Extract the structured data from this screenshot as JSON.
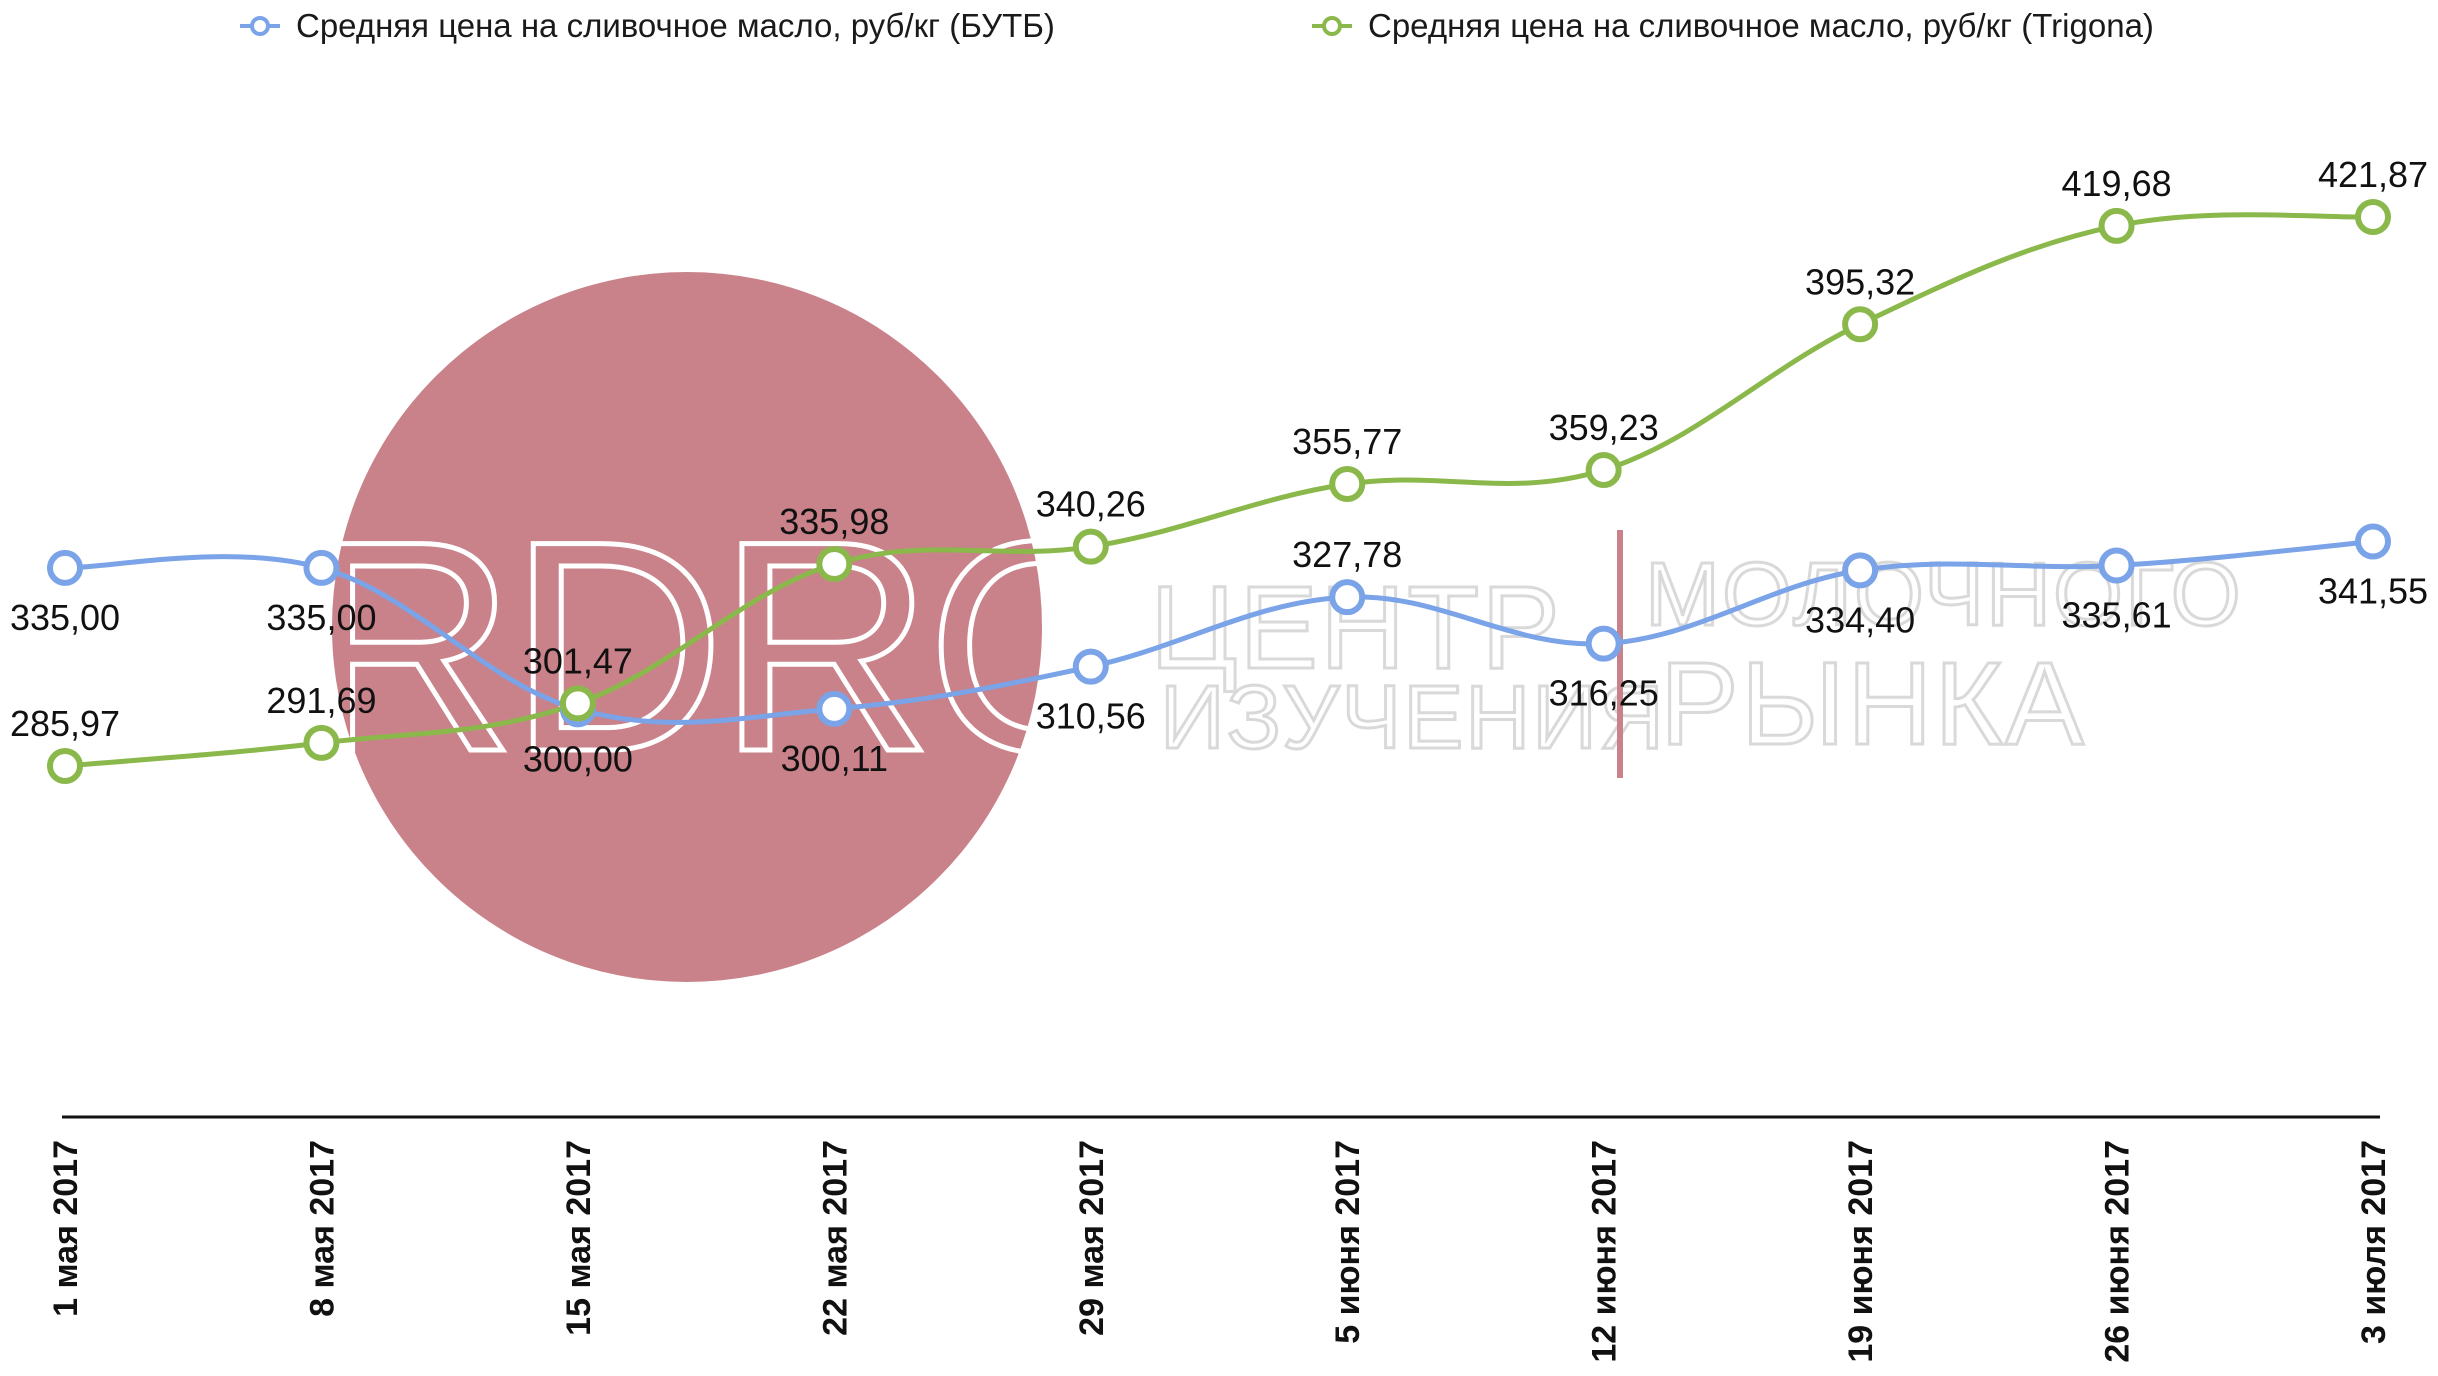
{
  "chart_data": {
    "type": "line",
    "categories": [
      "1 мая 2017",
      "8 мая 2017",
      "15 мая 2017",
      "22 мая 2017",
      "29 мая 2017",
      "5 июня 2017",
      "12 июня 2017",
      "19 июня 2017",
      "26 июня 2017",
      "3 июля 2017"
    ],
    "series": [
      {
        "name": "Средняя цена на сливочное масло, руб/кг (БУТБ)",
        "color": "#7aa3e8",
        "values": [
          335.0,
          335.0,
          300.0,
          300.11,
          310.56,
          327.78,
          316.25,
          334.4,
          335.61,
          341.55
        ],
        "labels": [
          "335,00",
          "335,00",
          "300,00",
          "300,11",
          "310,56",
          "327,78",
          "316,25",
          "334,40",
          "335,61",
          "341,55"
        ]
      },
      {
        "name": "Средняя цена на сливочное масло, руб/кг (Trigona)",
        "color": "#8bb84a",
        "values": [
          285.97,
          291.69,
          301.47,
          335.98,
          340.26,
          355.77,
          359.23,
          395.32,
          419.68,
          421.87
        ],
        "labels": [
          "285,97",
          "291,69",
          "301,47",
          "335,98",
          "340,26",
          "355,77",
          "359,23",
          "395,32",
          "419,68",
          "421,87"
        ]
      }
    ],
    "legend_position": "top",
    "grid": false,
    "xlabel": "",
    "ylabel": ""
  },
  "watermark": {
    "logo_text": "RDRC",
    "line1_left": "ЦЕНТР",
    "line1_right": "МОЛОЧНОГО",
    "line2_left": "ИЗУЧЕНИЯ",
    "line2_right": "РЫНКА",
    "circle_color": "#c9828a",
    "divider_color": "#c9828a"
  }
}
